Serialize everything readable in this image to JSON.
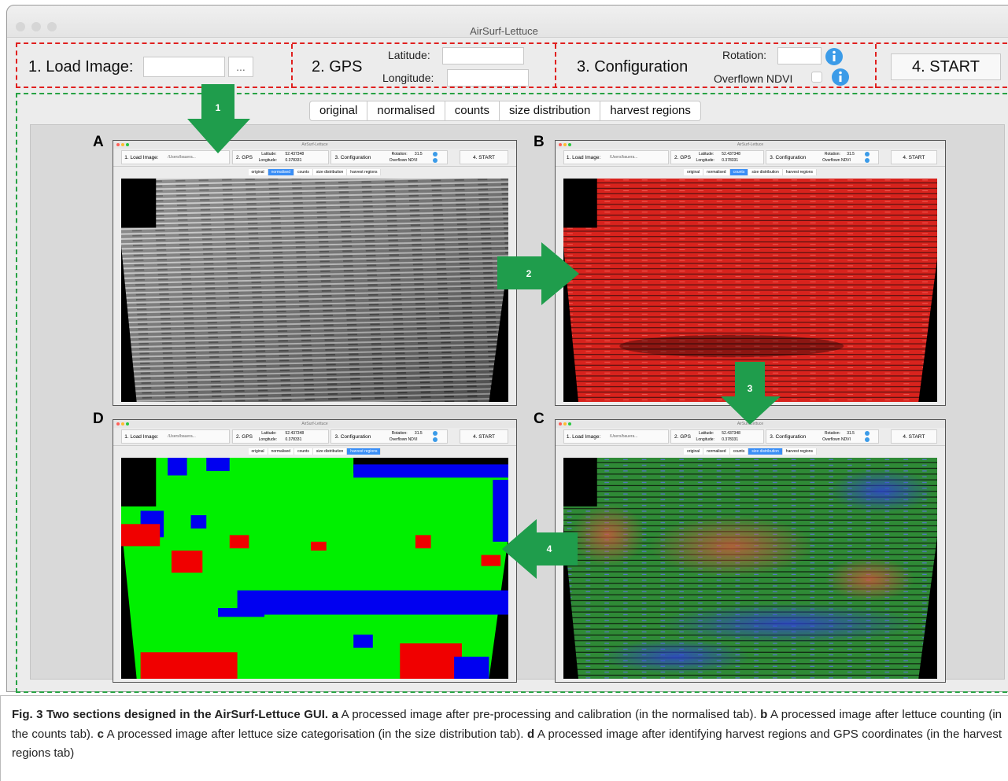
{
  "window_title": "AirSurf-Lettuce",
  "toolbar": {
    "load_label": "1. Load Image:",
    "browse": "...",
    "gps": "2. GPS",
    "latitude": "Latitude:",
    "longitude": "Longitude:",
    "configuration": "3. Configuration",
    "rotation": "Rotation:",
    "overflown": "Overflown NDVI",
    "start": "4. START"
  },
  "tabs": [
    "original",
    "normalised",
    "counts",
    "size distribution",
    "harvest regions"
  ],
  "mini": {
    "path": "/Users/bauera...",
    "latitude": "52.437348",
    "longitude": "0.378331",
    "rotation": "31.5"
  },
  "panel_letters": [
    "A",
    "B",
    "C",
    "D"
  ],
  "arrows": [
    "1",
    "2",
    "3",
    "4"
  ],
  "caption": {
    "title": "Fig. 3 Two sections designed in the AirSurf-Lettuce GUI.",
    "items": [
      {
        "letter": "a",
        "text": "A processed image after pre-processing and calibration (in the normalised tab)."
      },
      {
        "letter": "b",
        "text": "A processed image after lettuce counting (in the counts tab)."
      },
      {
        "letter": "c",
        "text": "A processed image after lettuce size categorisation (in the size distribution tab)."
      },
      {
        "letter": "d",
        "text": "A processed image after identifying harvest regions and GPS coordinates (in the harvest regions tab)"
      }
    ]
  }
}
